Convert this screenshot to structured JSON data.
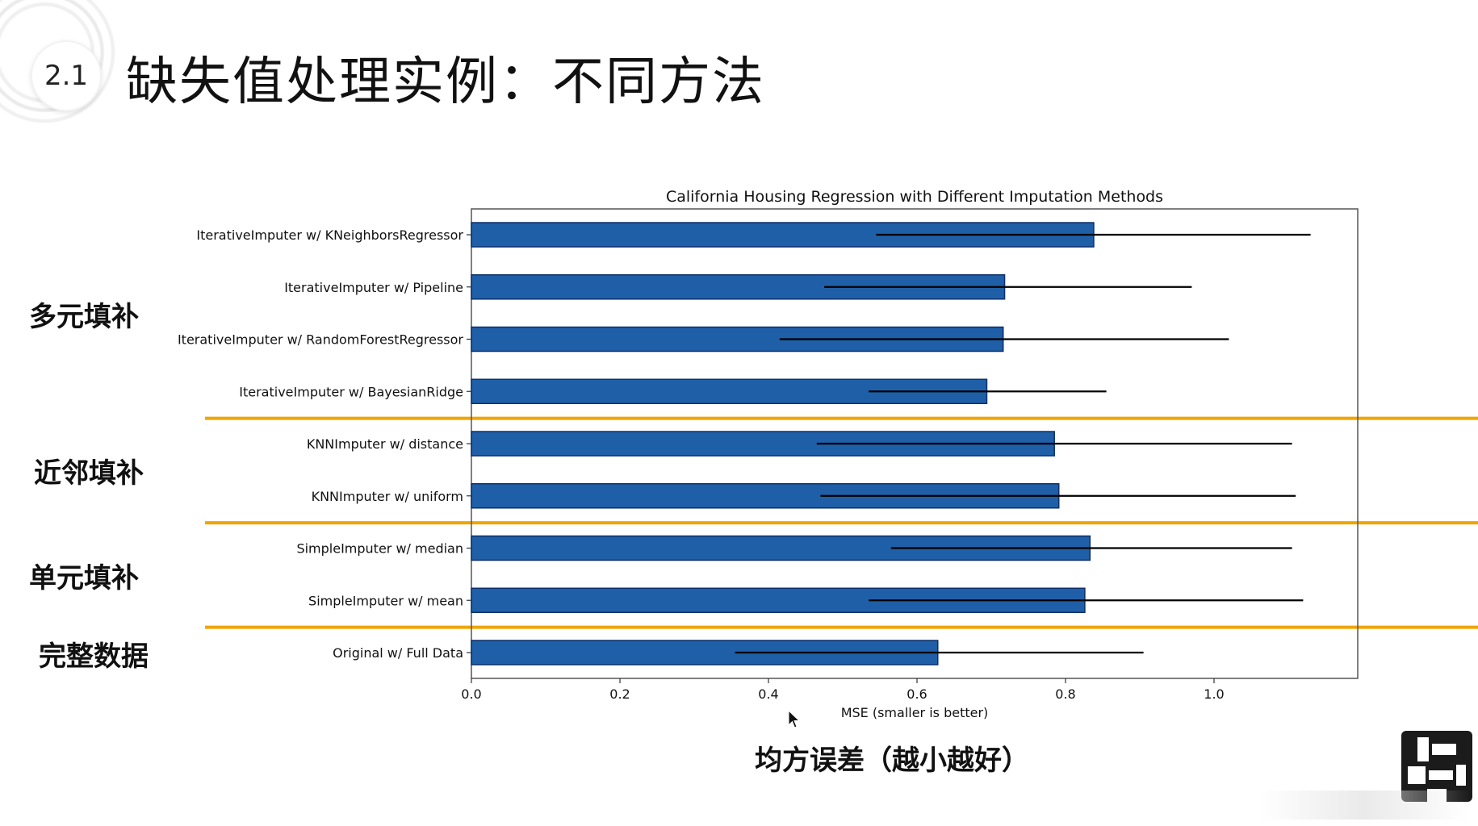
{
  "slide": {
    "section_number": "2.1",
    "title": "缺失值处理实例：不同方法",
    "bottom_caption": "均方误差（越小越好）",
    "group_labels": [
      {
        "text": "多元填补",
        "spans_categories": [
          0,
          3
        ]
      },
      {
        "text": "近邻填补",
        "spans_categories": [
          4,
          5
        ]
      },
      {
        "text": "单元填补",
        "spans_categories": [
          6,
          7
        ]
      },
      {
        "text": "完整数据",
        "spans_categories": [
          8,
          8
        ]
      }
    ],
    "separator_after_categories": [
      3,
      5,
      7
    ],
    "separator_color": "#f0a500"
  },
  "chart_data": {
    "type": "bar",
    "orientation": "horizontal",
    "title": "California Housing Regression with Different Imputation Methods",
    "xlabel": "MSE (smaller is better)",
    "ylabel": "",
    "xlim": [
      0.0,
      1.19
    ],
    "xticks": [
      0.0,
      0.2,
      0.4,
      0.6,
      0.8,
      1.0
    ],
    "xtick_labels": [
      "0.0",
      "0.2",
      "0.4",
      "0.6",
      "0.8",
      "1.0"
    ],
    "categories": [
      "IterativeImputer w/ KNeighborsRegressor",
      "IterativeImputer w/ Pipeline",
      "IterativeImputer w/ RandomForestRegressor",
      "IterativeImputer w/ BayesianRidge",
      "KNNImputer w/ distance",
      "KNNImputer w/ uniform",
      "SimpleImputer w/ median",
      "SimpleImputer w/ mean",
      "Original w/ Full Data"
    ],
    "values": [
      0.838,
      0.718,
      0.716,
      0.694,
      0.785,
      0.791,
      0.833,
      0.826,
      0.628
    ],
    "error_low": [
      0.545,
      0.475,
      0.415,
      0.535,
      0.465,
      0.47,
      0.565,
      0.535,
      0.355
    ],
    "error_high": [
      1.13,
      0.97,
      1.02,
      0.855,
      1.105,
      1.11,
      1.105,
      1.12,
      0.905
    ],
    "bar_color": "#1f5fa8",
    "bar_edge_color": "#0d2f6a",
    "error_color": "#000000",
    "grid": false
  },
  "icons": {
    "cursor": "mouse-pointer-icon",
    "logo": "channel-logo-icon"
  }
}
